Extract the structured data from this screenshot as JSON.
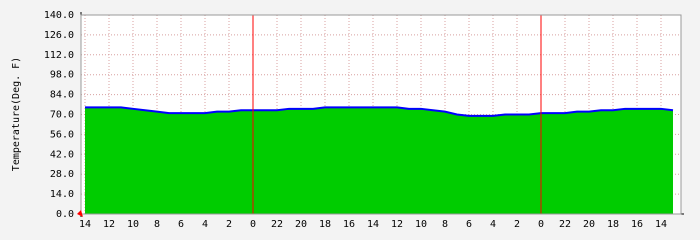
{
  "chart_data": {
    "type": "area",
    "y_label": "Temperature(Deg. F)",
    "categories": [
      "14",
      null,
      "12",
      null,
      "10",
      null,
      "8",
      null,
      "6",
      null,
      "4",
      null,
      "2",
      null,
      "0",
      null,
      "22",
      null,
      "20",
      null,
      "18",
      null,
      "16",
      null,
      "14",
      null,
      "12",
      null,
      "10",
      null,
      "8",
      null,
      "6",
      null,
      "4",
      null,
      "2",
      null,
      "0",
      null,
      "22",
      null,
      "20",
      null,
      "18",
      null,
      "16",
      null,
      "14",
      null
    ],
    "series": [
      {
        "color": "#00cc00",
        "line_color": "#0000ff",
        "values": [
          75,
          75,
          75,
          75,
          74,
          73,
          72,
          71,
          71,
          71,
          71,
          72,
          72,
          73,
          73,
          73,
          73,
          74,
          74,
          74,
          75,
          75,
          75,
          75,
          75,
          75,
          75,
          74,
          74,
          73,
          72,
          70,
          69,
          69,
          69,
          70,
          70,
          70,
          71,
          71,
          71,
          72,
          72,
          73,
          73,
          74,
          74,
          74,
          74,
          73
        ]
      }
    ],
    "ylim": [
      0,
      140
    ],
    "yticks": [
      {
        "value": 0,
        "label": "0.0"
      },
      {
        "value": 14,
        "label": "14.0"
      },
      {
        "value": 28,
        "label": "28.0"
      },
      {
        "value": 42,
        "label": "42.0"
      },
      {
        "value": 56,
        "label": "56.0"
      },
      {
        "value": 70,
        "label": "70.0"
      },
      {
        "value": 84,
        "label": "84.0"
      },
      {
        "value": 98,
        "label": "98.0"
      },
      {
        "value": 112,
        "label": "112.0"
      },
      {
        "value": 126,
        "label": "126.0"
      },
      {
        "value": 140,
        "label": "140.0"
      }
    ],
    "grid": true,
    "day_boundary_color": "#ff0000"
  }
}
